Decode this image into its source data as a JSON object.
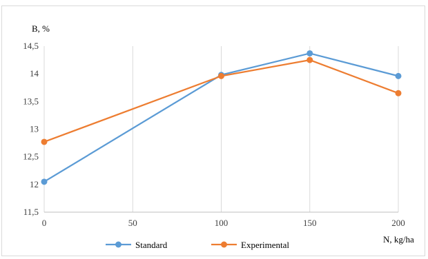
{
  "chart_data": {
    "type": "line",
    "title": "",
    "ylabel": "B, %",
    "xlabel": "N, kg/ha",
    "x": [
      0,
      100,
      150,
      200
    ],
    "xticks": [
      "0",
      "50",
      "100",
      "150",
      "200"
    ],
    "yticks": [
      "11,5",
      "12",
      "12,5",
      "13",
      "13,5",
      "14",
      "14,5"
    ],
    "xlim": [
      0,
      200
    ],
    "ylim": [
      11.5,
      14.5
    ],
    "grid": "vertical",
    "legend": "bottom",
    "series": [
      {
        "name": "Standard",
        "color": "#5b9bd5",
        "values": [
          12.05,
          13.98,
          14.37,
          13.96
        ]
      },
      {
        "name": "Experimental",
        "color": "#ed7d31",
        "values": [
          12.77,
          13.96,
          14.25,
          13.65
        ]
      }
    ]
  }
}
